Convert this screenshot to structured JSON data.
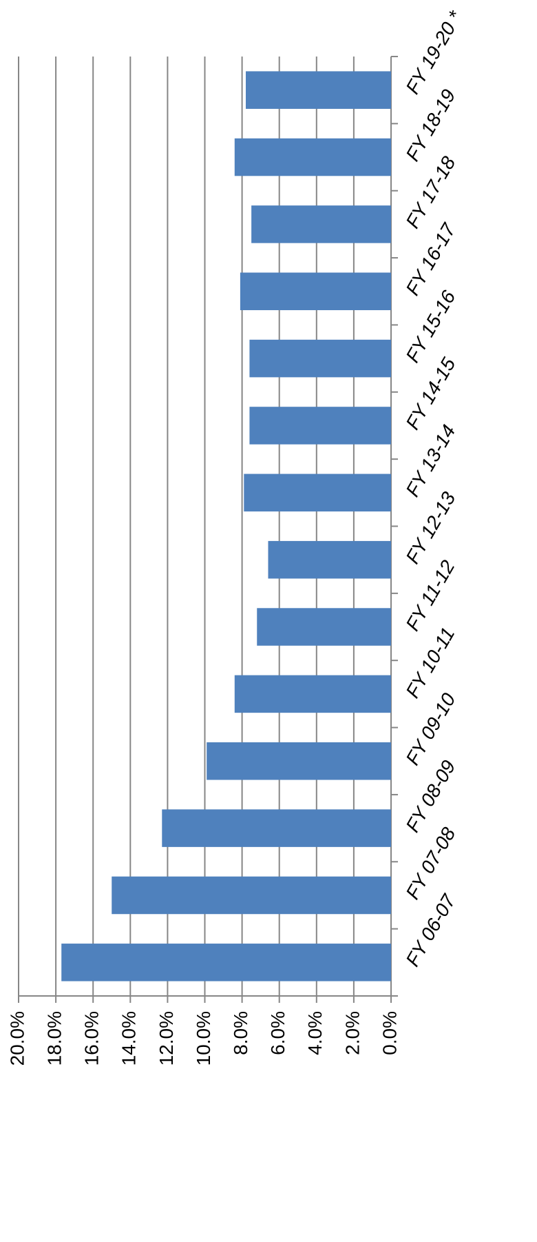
{
  "chart_data": {
    "type": "bar",
    "orientation": "horizontal",
    "categories": [
      "FY 06-07",
      "FY 07-08",
      "FY 08-09",
      "FY 09-10",
      "FY 10-11",
      "FY 11-12",
      "FY 12-13",
      "FY 13-14",
      "FY 14-15",
      "FY 15-16",
      "FY 16-17",
      "FY 17-18",
      "FY 18-19",
      "FY 19-20 *"
    ],
    "values": [
      17.7,
      15.0,
      12.3,
      9.9,
      8.4,
      7.2,
      6.6,
      7.9,
      7.6,
      7.6,
      8.1,
      7.5,
      8.4,
      7.8
    ],
    "color": "#4f81bd",
    "ylim": [
      0,
      20
    ],
    "yticks": [
      {
        "value": 0,
        "label": "0.0%"
      },
      {
        "value": 2,
        "label": "2.0%"
      },
      {
        "value": 4,
        "label": "4.0%"
      },
      {
        "value": 6,
        "label": "6.0%"
      },
      {
        "value": 8,
        "label": "8.0%"
      },
      {
        "value": 10,
        "label": "10.0%"
      },
      {
        "value": 12,
        "label": "12.0%"
      },
      {
        "value": 14,
        "label": "14.0%"
      },
      {
        "value": 16,
        "label": "16.0%"
      },
      {
        "value": 18,
        "label": "18.0%"
      },
      {
        "value": 20,
        "label": "20.0%"
      }
    ],
    "grid": true
  }
}
